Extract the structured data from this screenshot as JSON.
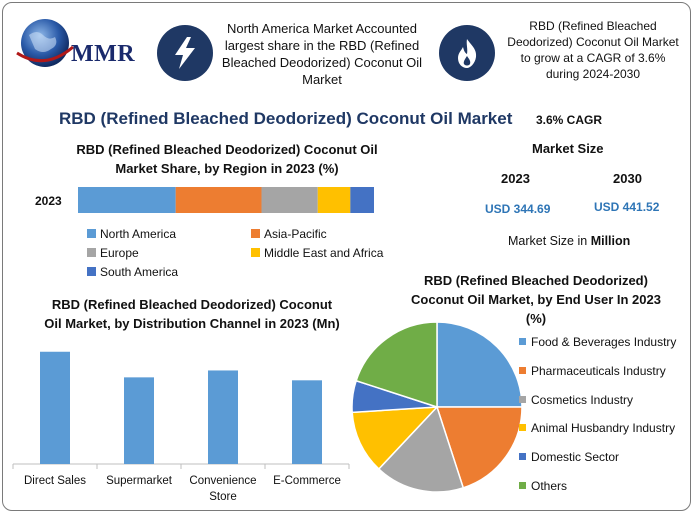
{
  "header": {
    "logo_text": "MMR",
    "note_left": "North America Market Accounted largest share in the RBD (Refined Bleached Deodorized) Coconut Oil Market",
    "note_right": "RBD (Refined Bleached Deodorized) Coconut Oil Market to grow at a CAGR of 3.6% during 2024-2030",
    "icon_left": "lightning-bolt-icon",
    "icon_right": "flame-icon",
    "icon_color": "#1f3864"
  },
  "main_title": "RBD (Refined Bleached Deodorized) Coconut Oil Market",
  "market": {
    "cagr": "3.6% CAGR",
    "size_title": "Market Size",
    "year_a": "2023",
    "year_b": "2030",
    "value_a": "USD 344.69",
    "value_b": "USD 441.52",
    "unit_prefix": "Market Size in",
    "unit_bold": "Million"
  },
  "chart_data": [
    {
      "type": "bar",
      "orientation": "horizontal-stacked",
      "title": "RBD (Refined Bleached Deodorized) Coconut Oil Market Share, by Region in 2023 (%)",
      "categories": [
        "2023"
      ],
      "series": [
        {
          "name": "North America",
          "values": [
            33
          ],
          "color": "#5b9bd5"
        },
        {
          "name": "Asia-Pacific",
          "values": [
            29
          ],
          "color": "#ed7d31"
        },
        {
          "name": "Europe",
          "values": [
            19
          ],
          "color": "#a5a5a5"
        },
        {
          "name": "Middle East and Africa",
          "values": [
            11
          ],
          "color": "#ffc000"
        },
        {
          "name": "South America",
          "values": [
            8
          ],
          "color": "#4472c4"
        }
      ],
      "xlim": [
        0,
        100
      ],
      "legend_position": "bottom"
    },
    {
      "type": "bar",
      "title": "RBD (Refined Bleached Deodorized) Coconut Oil Market, by Distribution Channel in 2023 (Mn)",
      "categories": [
        "Direct Sales",
        "Supermarket",
        "Convenience Store",
        "E-Commerce"
      ],
      "category_lines": [
        [
          "Direct Sales"
        ],
        [
          "Supermarket"
        ],
        [
          "Convenience",
          "Store"
        ],
        [
          "E-Commerce"
        ]
      ],
      "values": [
        114,
        88,
        95,
        85
      ],
      "ylim": [
        0,
        130
      ],
      "color": "#5b9bd5",
      "grid": false
    },
    {
      "type": "pie",
      "title": "RBD (Refined Bleached Deodorized) Coconut Oil Market, by End User In 2023 (%)",
      "labels": [
        "Food & Beverages Industry",
        "Pharmaceuticals Industry",
        "Cosmetics Industry",
        "Animal Husbandry Industry",
        "Domestic Sector",
        "Others"
      ],
      "values": [
        25,
        20,
        17,
        12,
        6,
        20
      ],
      "colors": [
        "#5b9bd5",
        "#ed7d31",
        "#a5a5a5",
        "#ffc000",
        "#4472c4",
        "#70ad47"
      ],
      "legend_position": "right"
    }
  ]
}
